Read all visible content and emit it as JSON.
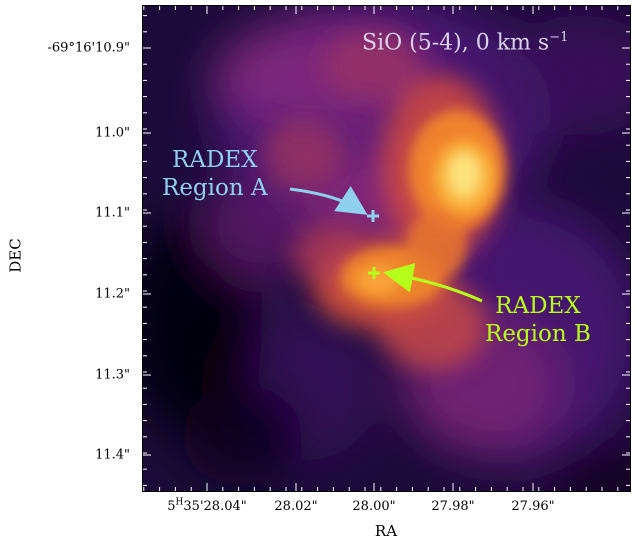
{
  "title": {
    "main": "SiO (5-4), 0 km s",
    "superscript": "−1"
  },
  "axes": {
    "xlabel": "RA",
    "ylabel": "DEC",
    "x_ticks": [
      {
        "prefix": "5",
        "sup": "H",
        "rest": "35'28.04\""
      },
      {
        "prefix": "",
        "sup": "",
        "rest": "28.02\""
      },
      {
        "prefix": "",
        "sup": "",
        "rest": "28.00\""
      },
      {
        "prefix": "",
        "sup": "",
        "rest": "27.98\""
      },
      {
        "prefix": "",
        "sup": "",
        "rest": "27.96\""
      }
    ],
    "y_ticks": [
      "-69°16'10.9\"",
      "11.0\"",
      "11.1\"",
      "11.2\"",
      "11.3\"",
      "11.4\""
    ]
  },
  "regions": {
    "a": {
      "line1": "RADEX",
      "line2": "Region A",
      "color": "#8fd0ef"
    },
    "b": {
      "line1": "RADEX",
      "line2": "Region B",
      "color": "#b6ff1a"
    }
  },
  "colormap": "inferno-like",
  "colors": {
    "background": "#140a2a",
    "title": "#d9d2e9"
  }
}
